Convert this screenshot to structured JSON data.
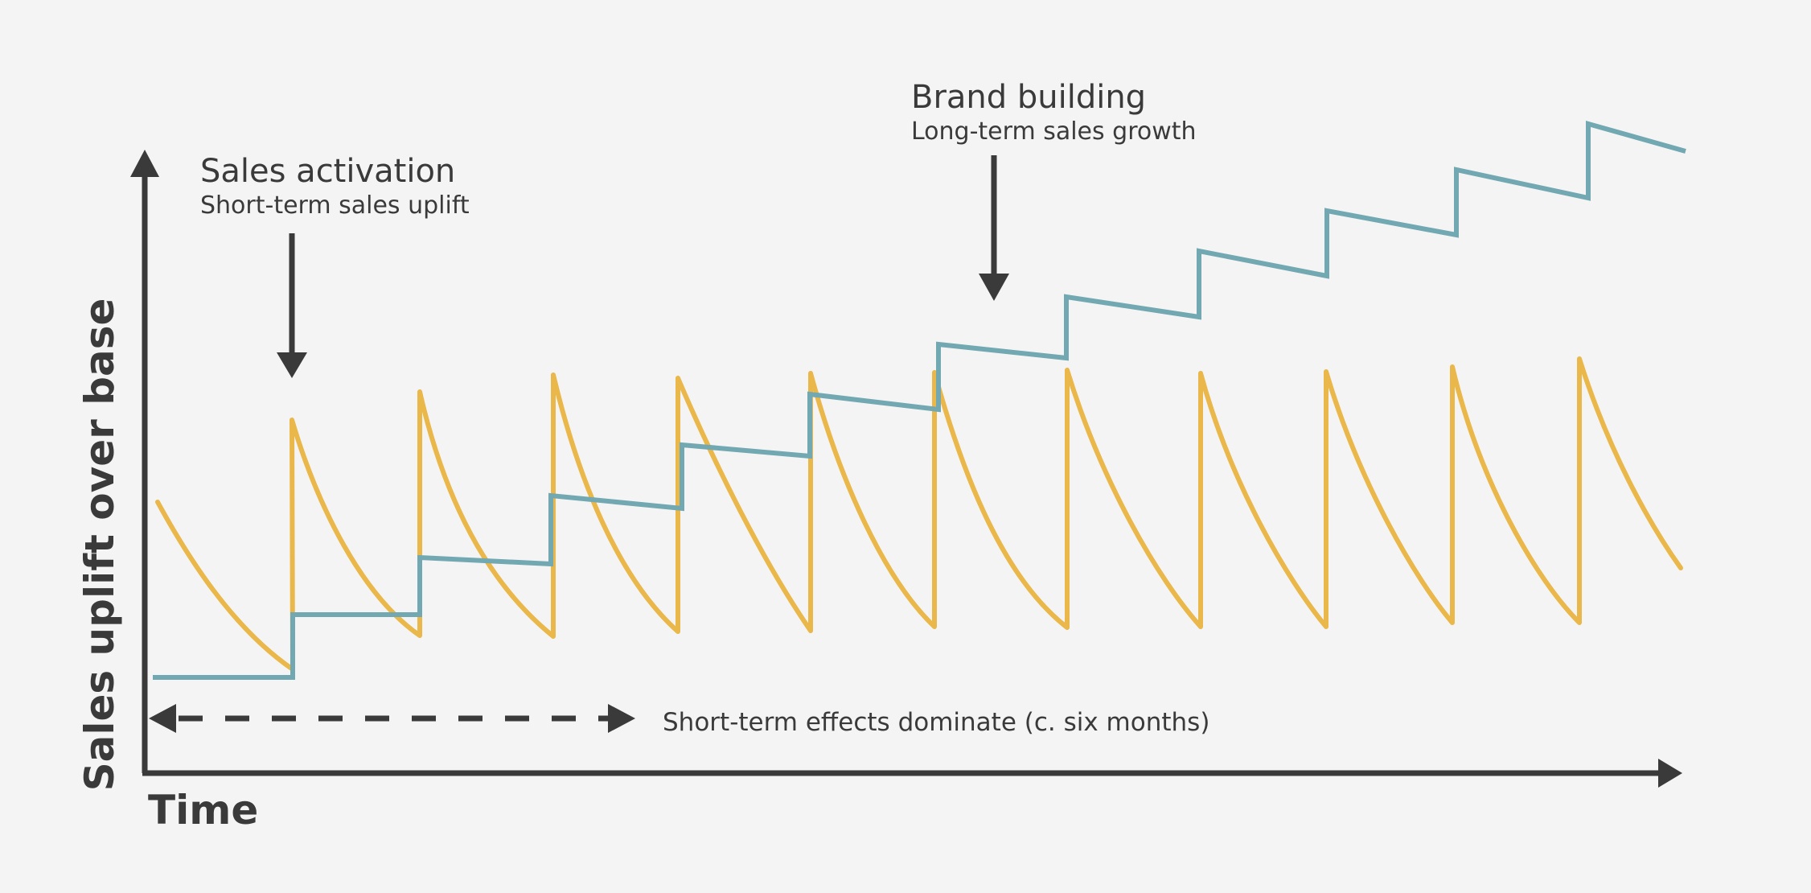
{
  "colors": {
    "background": "#f4f4f4",
    "ink": "#3a3a3a",
    "activation": "#eab84a",
    "brand": "#72a8b1"
  },
  "axes": {
    "y_label": "Sales uplift over base",
    "x_label": "Time"
  },
  "callouts": {
    "activation": {
      "title": "Sales activation",
      "subtitle": "Short-term sales uplift"
    },
    "brand": {
      "title": "Brand building",
      "subtitle": "Long-term sales growth"
    }
  },
  "range_note": "Short-term effects dominate (c. six months)"
}
